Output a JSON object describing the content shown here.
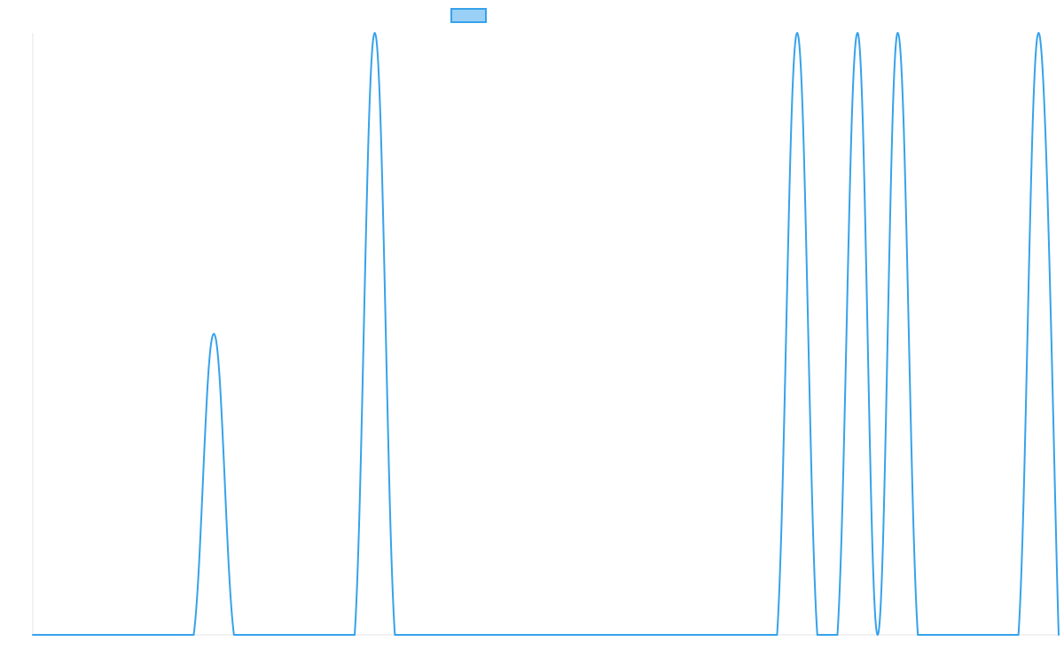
{
  "chart_data": {
    "type": "line",
    "title": "",
    "xlabel": "",
    "ylabel": "",
    "x": [
      0,
      10,
      20,
      30,
      40,
      50,
      60,
      70,
      80,
      90,
      100,
      110,
      120,
      130,
      140,
      150,
      160,
      170,
      180,
      190,
      200,
      210,
      220,
      230,
      240,
      250,
      260,
      270,
      280,
      290,
      300,
      310,
      320,
      330,
      340,
      350,
      360,
      370,
      380,
      390,
      400,
      410,
      420,
      430,
      440,
      450,
      460,
      470,
      480,
      490,
      500,
      510
    ],
    "xlim": [
      0,
      510
    ],
    "ylim": [
      0,
      1
    ],
    "grid": false,
    "legend": {
      "position": "top-center",
      "entries": [
        ""
      ]
    },
    "series": [
      {
        "values": [
          0,
          0,
          0,
          0,
          0,
          0,
          0,
          0,
          0,
          0.5,
          0,
          0,
          0,
          0,
          0,
          0,
          0,
          1,
          0,
          0,
          0,
          0,
          0,
          0,
          0,
          0,
          0,
          0,
          0,
          0,
          0,
          0,
          0,
          0,
          0,
          0,
          0,
          0,
          1,
          0,
          0,
          1,
          0,
          1,
          0,
          0,
          0,
          0,
          0,
          0,
          1,
          0
        ],
        "color": "#36a2eb",
        "fill": "#9ad0f5"
      }
    ]
  }
}
